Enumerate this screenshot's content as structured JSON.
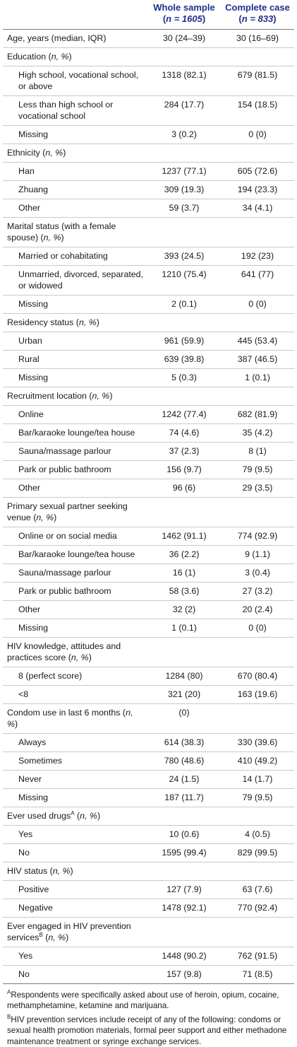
{
  "header": {
    "col1": "",
    "col2_title": "Whole sample",
    "col2_n": "n = 1605",
    "col3_title": "Complete case",
    "col3_n": "n = 833"
  },
  "rows": [
    {
      "kind": "cat",
      "label": "Age, years (median, IQR)",
      "whole": "30 (24–39)",
      "complete": "30 (16–69)"
    },
    {
      "kind": "cat",
      "label": "Education",
      "suffix": "n, %",
      "whole": "",
      "complete": ""
    },
    {
      "kind": "sub",
      "label": "High school, vocational school, or above",
      "whole": "1318 (82.1)",
      "complete": "679 (81.5)"
    },
    {
      "kind": "sub",
      "label": "Less than high school or vocational school",
      "whole": "284 (17.7)",
      "complete": "154 (18.5)"
    },
    {
      "kind": "sub",
      "label": "Missing",
      "whole": "3 (0.2)",
      "complete": "0 (0)"
    },
    {
      "kind": "cat",
      "label": "Ethnicity",
      "suffix": "n, %",
      "whole": "",
      "complete": ""
    },
    {
      "kind": "sub",
      "label": "Han",
      "whole": "1237 (77.1)",
      "complete": "605 (72.6)"
    },
    {
      "kind": "sub",
      "label": "Zhuang",
      "whole": "309 (19.3)",
      "complete": "194 (23.3)"
    },
    {
      "kind": "sub",
      "label": "Other",
      "whole": "59 (3.7)",
      "complete": "34 (4.1)"
    },
    {
      "kind": "cat",
      "label": "Marital status (with a female spouse)",
      "suffix": "n, %",
      "whole": "",
      "complete": ""
    },
    {
      "kind": "sub",
      "label": "Married or cohabitating",
      "whole": "393 (24.5)",
      "complete": "192 (23)"
    },
    {
      "kind": "sub",
      "label": "Unmarried, divorced, separated, or widowed",
      "whole": "1210 (75.4)",
      "complete": "641 (77)"
    },
    {
      "kind": "sub",
      "label": "Missing",
      "whole": "2 (0.1)",
      "complete": "0 (0)"
    },
    {
      "kind": "cat",
      "label": "Residency status",
      "suffix": "n, %",
      "whole": "",
      "complete": ""
    },
    {
      "kind": "sub",
      "label": "Urban",
      "whole": "961 (59.9)",
      "complete": "445 (53.4)"
    },
    {
      "kind": "sub",
      "label": "Rural",
      "whole": "639 (39.8)",
      "complete": "387 (46.5)"
    },
    {
      "kind": "sub",
      "label": "Missing",
      "whole": "5 (0.3)",
      "complete": "1 (0.1)"
    },
    {
      "kind": "cat",
      "label": "Recruitment location",
      "suffix": "n, %",
      "whole": "",
      "complete": ""
    },
    {
      "kind": "sub",
      "label": "Online",
      "whole": "1242 (77.4)",
      "complete": "682 (81.9)"
    },
    {
      "kind": "sub",
      "label": "Bar/karaoke lounge/tea house",
      "whole": "74 (4.6)",
      "complete": "35 (4.2)"
    },
    {
      "kind": "sub",
      "label": "Sauna/massage parlour",
      "whole": "37 (2.3)",
      "complete": "8 (1)"
    },
    {
      "kind": "sub",
      "label": "Park or public bathroom",
      "whole": "156 (9.7)",
      "complete": "79 (9.5)"
    },
    {
      "kind": "sub",
      "label": "Other",
      "whole": "96 (6)",
      "complete": "29 (3.5)"
    },
    {
      "kind": "cat",
      "label": "Primary sexual partner seeking venue",
      "suffix": "n, %",
      "whole": "",
      "complete": ""
    },
    {
      "kind": "sub",
      "label": "Online or on social media",
      "whole": "1462 (91.1)",
      "complete": "774 (92.9)"
    },
    {
      "kind": "sub",
      "label": "Bar/karaoke lounge/tea house",
      "whole": "36 (2.2)",
      "complete": "9 (1.1)"
    },
    {
      "kind": "sub",
      "label": "Sauna/massage parlour",
      "whole": "16 (1)",
      "complete": "3 (0.4)"
    },
    {
      "kind": "sub",
      "label": "Park or public bathroom",
      "whole": "58 (3.6)",
      "complete": "27 (3.2)"
    },
    {
      "kind": "sub",
      "label": "Other",
      "whole": "32 (2)",
      "complete": "20 (2.4)"
    },
    {
      "kind": "sub",
      "label": "Missing",
      "whole": "1 (0.1)",
      "complete": "0 (0)"
    },
    {
      "kind": "cat",
      "label": "HIV knowledge, attitudes and practices score",
      "suffix": "n, %",
      "whole": "",
      "complete": ""
    },
    {
      "kind": "sub",
      "label": "8 (perfect score)",
      "whole": "1284 (80)",
      "complete": "670 (80.4)"
    },
    {
      "kind": "sub",
      "label": "<8",
      "whole": "321 (20)",
      "complete": "163 (19.6)"
    },
    {
      "kind": "cat",
      "label": "Condom use in last 6 months",
      "suffix": "n, %",
      "whole": "(0)",
      "complete": ""
    },
    {
      "kind": "sub",
      "label": "Always",
      "whole": "614 (38.3)",
      "complete": "330 (39.6)"
    },
    {
      "kind": "sub",
      "label": "Sometimes",
      "whole": "780 (48.6)",
      "complete": "410 (49.2)"
    },
    {
      "kind": "sub",
      "label": "Never",
      "whole": "24 (1.5)",
      "complete": "14 (1.7)"
    },
    {
      "kind": "sub",
      "label": "Missing",
      "whole": "187 (11.7)",
      "complete": "79 (9.5)"
    },
    {
      "kind": "cat",
      "label": "Ever used drugs",
      "sup": "A",
      "suffix": "n, %",
      "whole": "",
      "complete": ""
    },
    {
      "kind": "sub",
      "label": "Yes",
      "whole": "10 (0.6)",
      "complete": "4 (0.5)"
    },
    {
      "kind": "sub",
      "label": "No",
      "whole": "1595 (99.4)",
      "complete": "829 (99.5)"
    },
    {
      "kind": "cat",
      "label": "HIV status",
      "suffix": "n, %",
      "whole": "",
      "complete": ""
    },
    {
      "kind": "sub",
      "label": "Positive",
      "whole": "127 (7.9)",
      "complete": "63 (7.6)"
    },
    {
      "kind": "sub",
      "label": "Negative",
      "whole": "1478 (92.1)",
      "complete": "770 (92.4)"
    },
    {
      "kind": "cat",
      "label": "Ever engaged in HIV prevention services",
      "sup": "B",
      "suffix": "n, %",
      "whole": "",
      "complete": ""
    },
    {
      "kind": "sub",
      "label": "Yes",
      "whole": "1448 (90.2)",
      "complete": "762 (91.5)"
    },
    {
      "kind": "sub",
      "label": "No",
      "whole": "157 (9.8)",
      "complete": "71 (8.5)"
    }
  ],
  "footnotes": [
    {
      "mark": "A",
      "text": "Respondents were specifically asked about use of heroin, opium, cocaine, methamphetamine, ketamine and marijuana."
    },
    {
      "mark": "B",
      "text": "HIV prevention services include receipt of any of the following: condoms or sexual health promotion materials, formal peer support and either methadone maintenance treatment or syringe exchange services."
    }
  ],
  "colors": {
    "header_text": "#1f2f8e",
    "rule": "#7a7a7a",
    "row_rule": "#c9c9c9"
  }
}
